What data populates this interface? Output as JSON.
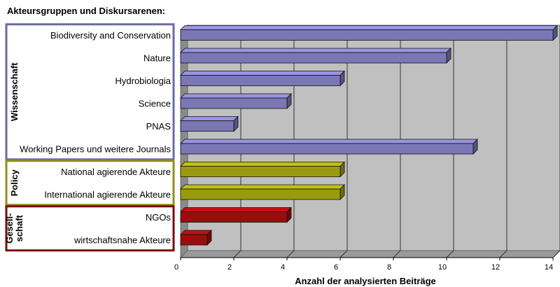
{
  "chart_data": {
    "type": "bar",
    "orientation": "horizontal",
    "title": "Akteursgruppen und Diskursarenen:",
    "xlabel": "Anzahl der analysierten Beiträge",
    "ylabel": "",
    "xlim": [
      0,
      14
    ],
    "x_ticks": [
      "0",
      "2",
      "4",
      "6",
      "8",
      "10",
      "12",
      "14"
    ],
    "grid": true,
    "categories": [
      "Biodiversity and Conservation",
      "Nature",
      "Hydrobiologia",
      "Science",
      "PNAS",
      "Working Papers und weitere Journals",
      "National agierende Akteure",
      "International agierende Akteure",
      "NGOs",
      "wirtschaftsnahe Akteure"
    ],
    "values": [
      14,
      10,
      6,
      4,
      2,
      11,
      6,
      6,
      4,
      1
    ],
    "groups": [
      {
        "label": "Wissenschaft",
        "label_lines": [
          "Wissenschaft"
        ],
        "color": "#7b76b4",
        "border": "#6a6aa8",
        "start": 0,
        "end": 5
      },
      {
        "label": "Policy",
        "label_lines": [
          "Policy"
        ],
        "color": "#9a9a10",
        "border": "#8f8f1e",
        "start": 6,
        "end": 7
      },
      {
        "label": "Gesell-schaft",
        "label_lines": [
          "Gesell-",
          "schaft"
        ],
        "color": "#9b0d0d",
        "border": "#7a0c0c",
        "start": 8,
        "end": 9
      }
    ],
    "plot_background": "#c0c0c0"
  }
}
